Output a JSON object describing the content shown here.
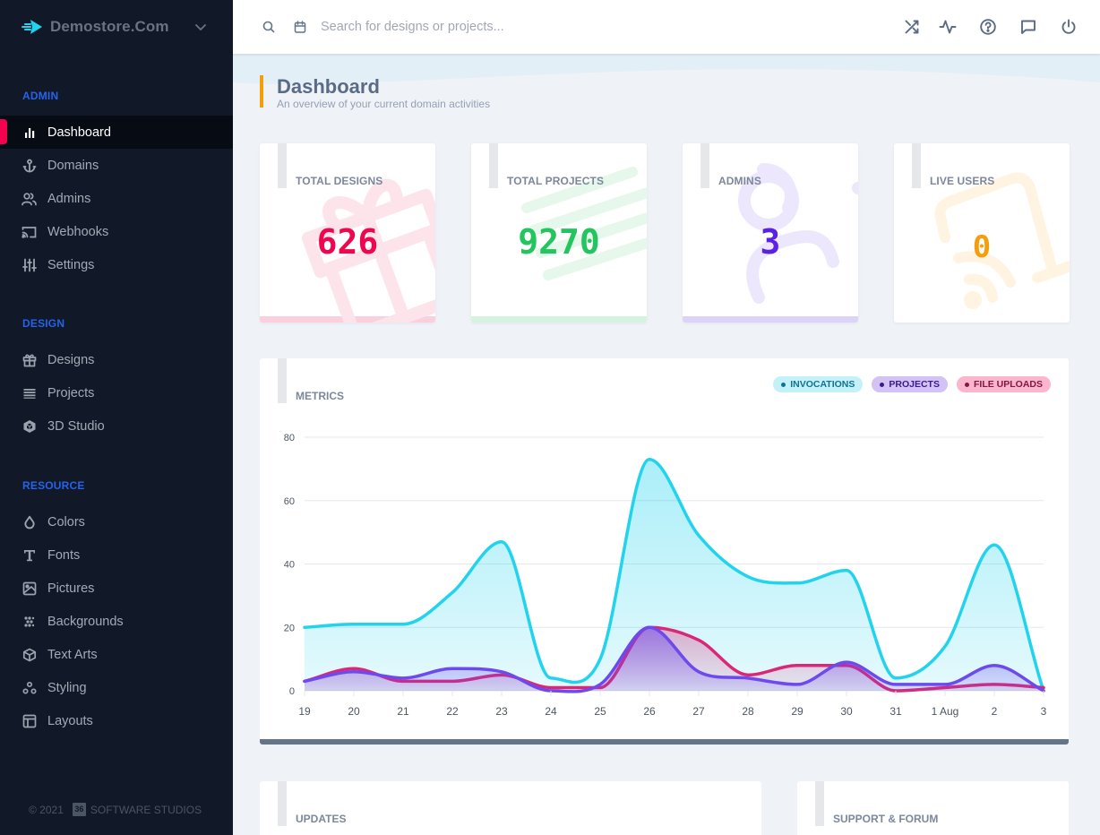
{
  "brand": {
    "name": "Demostore.Com",
    "logo_icon": "fast-arrow-icon",
    "menu_icon": "chevron-down-icon"
  },
  "sidebar": {
    "sections": [
      {
        "title": "ADMIN",
        "items": [
          {
            "label": "Dashboard",
            "icon": "bar-chart-icon",
            "active": true
          },
          {
            "label": "Domains",
            "icon": "anchor-icon"
          },
          {
            "label": "Admins",
            "icon": "users-icon"
          },
          {
            "label": "Webhooks",
            "icon": "cast-icon"
          },
          {
            "label": "Settings",
            "icon": "sliders-icon"
          }
        ]
      },
      {
        "title": "DESIGN",
        "items": [
          {
            "label": "Designs",
            "icon": "gift-icon"
          },
          {
            "label": "Projects",
            "icon": "list-icon"
          },
          {
            "label": "3D Studio",
            "icon": "codesandbox-icon"
          }
        ]
      },
      {
        "title": "RESOURCE",
        "items": [
          {
            "label": "Colors",
            "icon": "droplet-icon"
          },
          {
            "label": "Fonts",
            "icon": "type-icon"
          },
          {
            "label": "Pictures",
            "icon": "image-icon"
          },
          {
            "label": "Backgrounds",
            "icon": "pattern-icon"
          },
          {
            "label": "Text Arts",
            "icon": "box-icon"
          },
          {
            "label": "Styling",
            "icon": "circles-icon"
          },
          {
            "label": "Layouts",
            "icon": "layout-icon"
          }
        ]
      }
    ],
    "footer": {
      "copyright": "© 2021",
      "logo_text": "36",
      "company": "SOFTWARE STUDIOS"
    }
  },
  "topbar": {
    "search_placeholder": "Search for designs or projects...",
    "search_value": "",
    "left_icons": [
      "search-icon",
      "calendar-icon"
    ],
    "right_icons": [
      "shuffle-icon",
      "activity-icon",
      "help-icon",
      "message-icon",
      "power-icon"
    ]
  },
  "page": {
    "title": "Dashboard",
    "subtitle": "An overview of your current domain activities"
  },
  "stats": [
    {
      "label": "TOTAL DESIGNS",
      "value": "626",
      "color": "#f0054f",
      "bar_color": "#fbd0dc",
      "art_color": "#fde4ea",
      "art": "gift"
    },
    {
      "label": "TOTAL PROJECTS",
      "value": "9270",
      "color": "#22c55e",
      "bar_color": "#d5f3df",
      "art_color": "#e6f8ec",
      "art": "lines"
    },
    {
      "label": "ADMINS",
      "value": "3",
      "color": "#5b21e6",
      "bar_color": "#ddd3f8",
      "art_color": "#ece7fd",
      "art": "users"
    },
    {
      "label": "LIVE USERS",
      "value": "0",
      "color": "#f59e0b",
      "bar_color": "#ffffff",
      "art_color": "#fff3e2",
      "art": "cast"
    }
  ],
  "metrics": {
    "title": "METRICS"
  },
  "lower_cards": [
    {
      "title": "UPDATES"
    },
    {
      "title": "SUPPORT & FORUM"
    }
  ],
  "chart_data": {
    "type": "area",
    "title": "METRICS",
    "xlabel": "",
    "ylabel": "",
    "x": [
      "19",
      "20",
      "21",
      "22",
      "23",
      "24",
      "25",
      "26",
      "27",
      "28",
      "29",
      "30",
      "31",
      "1 Aug",
      "2",
      "3"
    ],
    "ylim": [
      0,
      80
    ],
    "yticks": [
      0,
      20,
      40,
      60,
      80
    ],
    "grid": true,
    "legend_position": "top-right",
    "series": [
      {
        "name": "INVOCATIONS",
        "color": "#22d3ee",
        "pill_bg": "#c4f1f9",
        "pill_text": "#0e7490",
        "values": [
          20,
          21,
          21,
          31,
          47,
          4,
          10,
          73,
          49,
          36,
          34,
          38,
          4,
          14,
          46,
          0
        ]
      },
      {
        "name": "FILE UPLOADS",
        "color": "#db2777",
        "pill_bg": "#fbb6ce",
        "pill_text": "#831843",
        "values": [
          3,
          7,
          3,
          3,
          5,
          1,
          1,
          20,
          16,
          5,
          8,
          8,
          0,
          1,
          2,
          1
        ]
      },
      {
        "name": "PROJECTS",
        "color": "#6d4aed",
        "pill_bg": "#d3c2f6",
        "pill_text": "#3b1a8a",
        "values": [
          3,
          6,
          4,
          7,
          6,
          0,
          2,
          20,
          6,
          4,
          2,
          9,
          2,
          2,
          8,
          0
        ]
      }
    ],
    "legend_order": [
      "INVOCATIONS",
      "PROJECTS",
      "FILE UPLOADS"
    ]
  }
}
